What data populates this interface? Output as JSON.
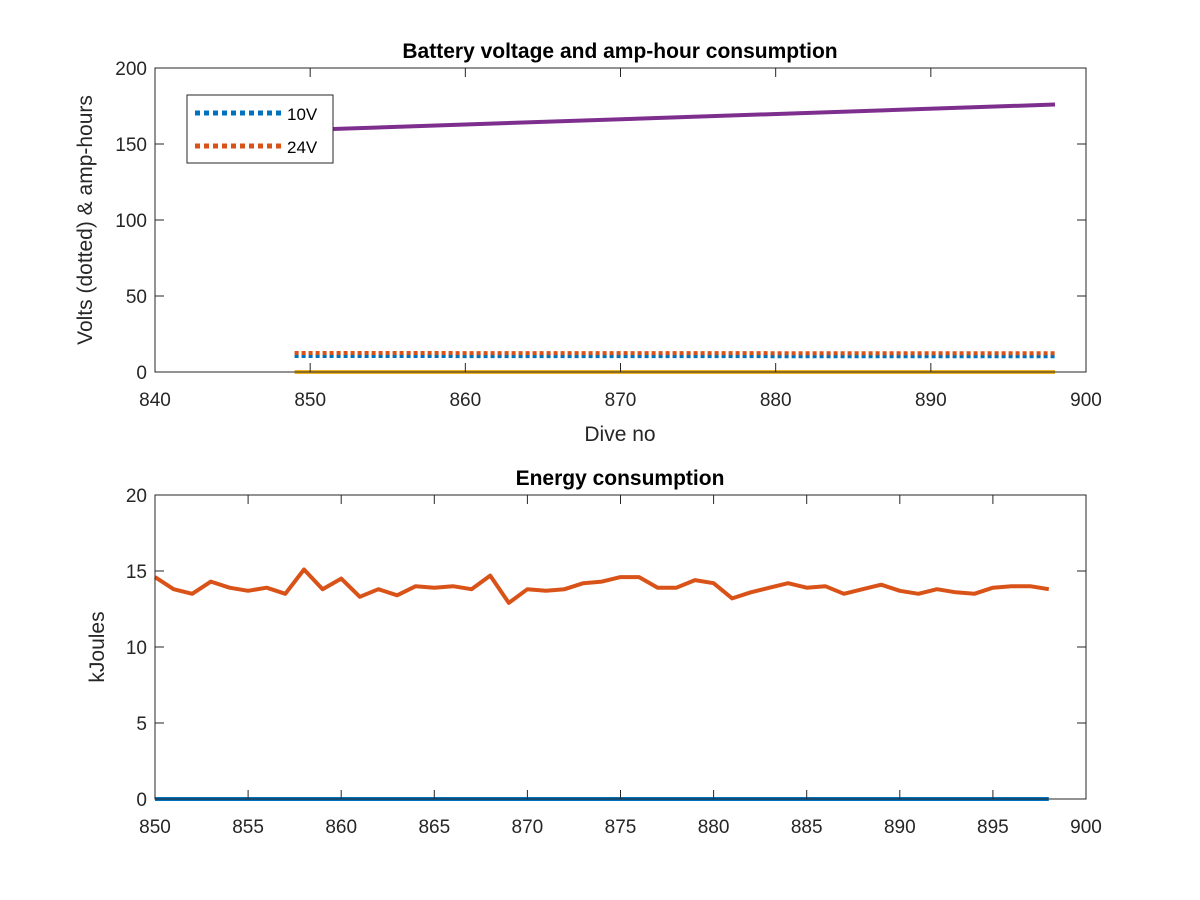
{
  "chart_data": [
    {
      "type": "line",
      "title": "Battery voltage and amp-hour consumption",
      "xlabel": "Dive no",
      "ylabel": "Volts (dotted) & amp-hours",
      "xlim": [
        840,
        900
      ],
      "ylim": [
        0,
        200
      ],
      "xticks": [
        840,
        850,
        860,
        870,
        880,
        890,
        900
      ],
      "yticks": [
        0,
        50,
        100,
        150,
        200
      ],
      "grid": false,
      "legend_position": "top-left",
      "series": [
        {
          "name": "10V",
          "style": "dotted",
          "color": "#0072BD",
          "x": [
            849,
            898
          ],
          "y": [
            10.5,
            10.3
          ]
        },
        {
          "name": "24V",
          "style": "dotted",
          "color": "#D95319",
          "x": [
            849,
            898
          ],
          "y": [
            12.5,
            12.3
          ]
        },
        {
          "style": "solid",
          "color": "#7E2F8E",
          "x": [
            849,
            898
          ],
          "y": [
            159,
            176
          ]
        },
        {
          "style": "solid",
          "color": "#EDB120",
          "x": [
            849,
            898
          ],
          "y": [
            0,
            0
          ]
        }
      ]
    },
    {
      "type": "line",
      "title": "Energy consumption",
      "xlabel": "",
      "ylabel": "kJoules",
      "xlim": [
        850,
        900
      ],
      "ylim": [
        0,
        20
      ],
      "xticks": [
        850,
        855,
        860,
        865,
        870,
        875,
        880,
        885,
        890,
        895,
        900
      ],
      "yticks": [
        0,
        5,
        10,
        15,
        20
      ],
      "grid": false,
      "series": [
        {
          "style": "solid",
          "color": "#0072BD",
          "x": [
            850,
            898
          ],
          "y": [
            0,
            0
          ]
        },
        {
          "style": "solid",
          "color": "#D95319",
          "x": [
            850,
            851,
            852,
            853,
            854,
            855,
            856,
            857,
            858,
            859,
            860,
            861,
            862,
            863,
            864,
            865,
            866,
            867,
            868,
            869,
            870,
            871,
            872,
            873,
            874,
            875,
            876,
            877,
            878,
            879,
            880,
            881,
            882,
            883,
            884,
            885,
            886,
            887,
            888,
            889,
            890,
            891,
            892,
            893,
            894,
            895,
            896,
            897,
            898
          ],
          "y": [
            14.6,
            13.8,
            13.5,
            14.3,
            13.9,
            13.7,
            13.9,
            13.5,
            15.1,
            13.8,
            14.5,
            13.3,
            13.8,
            13.4,
            14.0,
            13.9,
            14.0,
            13.8,
            14.7,
            12.9,
            13.8,
            13.7,
            13.8,
            14.2,
            14.3,
            14.6,
            14.6,
            13.9,
            13.9,
            14.4,
            14.2,
            13.2,
            13.6,
            13.9,
            14.2,
            13.9,
            14.0,
            13.5,
            13.8,
            14.1,
            13.7,
            13.5,
            13.8,
            13.6,
            13.5,
            13.9,
            14.0,
            14.0,
            13.8
          ]
        }
      ]
    }
  ]
}
